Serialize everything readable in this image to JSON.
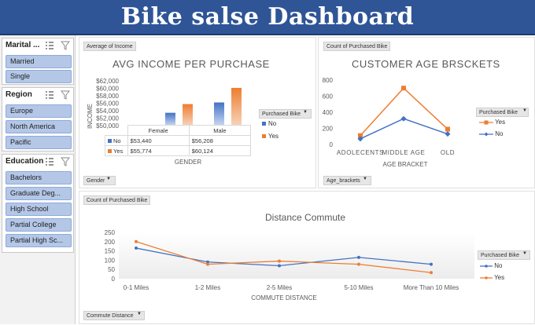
{
  "header": {
    "title": "Bike salse Dashboard"
  },
  "slicers": [
    {
      "title": "Marital ...",
      "items": [
        "Married",
        "Single"
      ]
    },
    {
      "title": "Region",
      "items": [
        "Europe",
        "North America",
        "Pacific"
      ]
    },
    {
      "title": "Education",
      "items": [
        "Bachelors",
        "Graduate Deg...",
        "High School",
        "Partial College",
        "Partial High Sc..."
      ]
    }
  ],
  "income_panel": {
    "field_top": "Average of Income",
    "title": "AVG INCOME PER PURCHASE",
    "ylabel": "INCOME",
    "xlabel": "GENDER",
    "legend_title": "Purchased Bike",
    "legend_items": [
      "No",
      "Yes"
    ],
    "field_bottom": "Gender",
    "yticks": [
      "$62,000",
      "$60,000",
      "$58,000",
      "$56,000",
      "$54,000",
      "$52,000",
      "$50,000"
    ],
    "table": {
      "headers": [
        "Female",
        "Male"
      ],
      "rows": [
        {
          "label": "No",
          "values": [
            "$53,440",
            "$56,208"
          ]
        },
        {
          "label": "Yes",
          "values": [
            "$55,774",
            "$60,124"
          ]
        }
      ]
    }
  },
  "age_panel": {
    "field_top": "Count of Purchased Bike",
    "title": "CUSTOMER AGE BRSCKETS",
    "xlabel": "AGE BRACKET",
    "legend_title": "Purchased Bike",
    "legend_items": [
      "Yes",
      "No"
    ],
    "field_bottom": "Age_brackets",
    "yticks": [
      "800",
      "600",
      "400",
      "200",
      "0"
    ]
  },
  "commute_panel": {
    "field_top": "Count of Purchased Bike",
    "title": "Distance Commute",
    "xlabel": "COMMUTE DISTANCE",
    "legend_title": "Purchased Bike",
    "legend_items": [
      "No",
      "Yes"
    ],
    "field_bottom": "Commute Distance",
    "yticks": [
      "250",
      "200",
      "150",
      "100",
      "50",
      "0"
    ]
  },
  "colors": {
    "banner": "#2f5597",
    "no": "#4472c4",
    "yes": "#ed7d31"
  },
  "chart_data": [
    {
      "type": "bar",
      "title": "AVG INCOME PER PURCHASE",
      "categories": [
        "Female",
        "Male"
      ],
      "series": [
        {
          "name": "No",
          "values": [
            53440,
            56208
          ]
        },
        {
          "name": "Yes",
          "values": [
            55774,
            60124
          ]
        }
      ],
      "ylabel": "INCOME",
      "xlabel": "GENDER",
      "ylim": [
        50000,
        62000
      ],
      "legend": "right"
    },
    {
      "type": "line",
      "title": "CUSTOMER AGE BRSCKETS",
      "categories": [
        "ADOLECENTS",
        "MIDDLE AGE",
        "OLD"
      ],
      "series": [
        {
          "name": "Yes",
          "values": [
            110,
            700,
            190
          ]
        },
        {
          "name": "No",
          "values": [
            70,
            320,
            130
          ]
        }
      ],
      "xlabel": "AGE BRACKET",
      "ylim": [
        0,
        800
      ],
      "legend": "right"
    },
    {
      "type": "line",
      "title": "Distance Commute",
      "categories": [
        "0-1 Miles",
        "1-2 Miles",
        "2-5 Miles",
        "5-10 Miles",
        "More Than 10 Miles"
      ],
      "series": [
        {
          "name": "No",
          "values": [
            165,
            90,
            70,
            115,
            78
          ]
        },
        {
          "name": "Yes",
          "values": [
            200,
            78,
            95,
            78,
            33
          ]
        }
      ],
      "xlabel": "COMMUTE DISTANCE",
      "ylim": [
        0,
        250
      ],
      "legend": "right"
    }
  ]
}
